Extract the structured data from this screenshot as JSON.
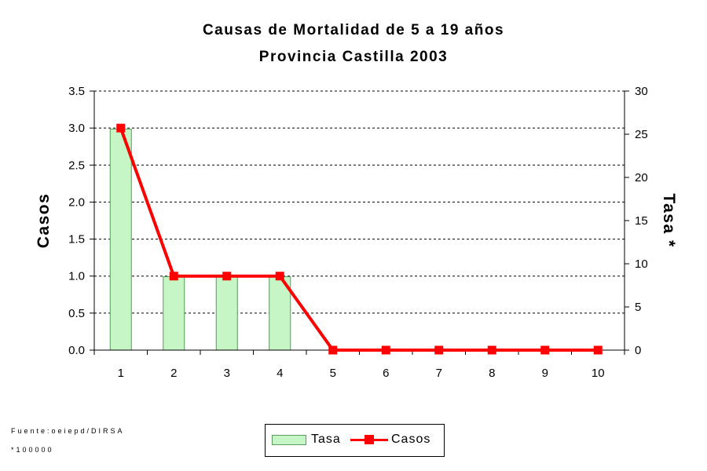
{
  "chart_data": {
    "type": "bar",
    "title": "Causas de Mortalidad de 5 a 19 años",
    "subtitle": "Provincia Castilla 2003",
    "categories": [
      "1",
      "2",
      "3",
      "4",
      "5",
      "6",
      "7",
      "8",
      "9",
      "10"
    ],
    "ylabel": "Casos",
    "y2label": "Tasa *",
    "ylim": [
      0,
      3.5
    ],
    "y2lim": [
      0,
      30
    ],
    "yticks": [
      "0.0",
      "0.5",
      "1.0",
      "1.5",
      "2.0",
      "2.5",
      "3.0",
      "3.5"
    ],
    "y2ticks": [
      "0",
      "5",
      "10",
      "15",
      "20",
      "25",
      "30"
    ],
    "grid": true,
    "legend_position": "bottom",
    "series": [
      {
        "name": "Tasa",
        "type": "bar",
        "axis": "y2",
        "color": "#c6f5c6",
        "edge_color": "#5a9a5a",
        "values": [
          25.6,
          8.5,
          8.5,
          8.5,
          0,
          0,
          0,
          0,
          0,
          0
        ]
      },
      {
        "name": "Casos",
        "type": "line",
        "axis": "y",
        "color": "#ff0000",
        "values": [
          3,
          1,
          1,
          1,
          0,
          0,
          0,
          0,
          0,
          0
        ]
      }
    ]
  },
  "footnotes": {
    "source": "Fuente:oeiepd/DIRSA",
    "tasa_note": "*100000"
  }
}
